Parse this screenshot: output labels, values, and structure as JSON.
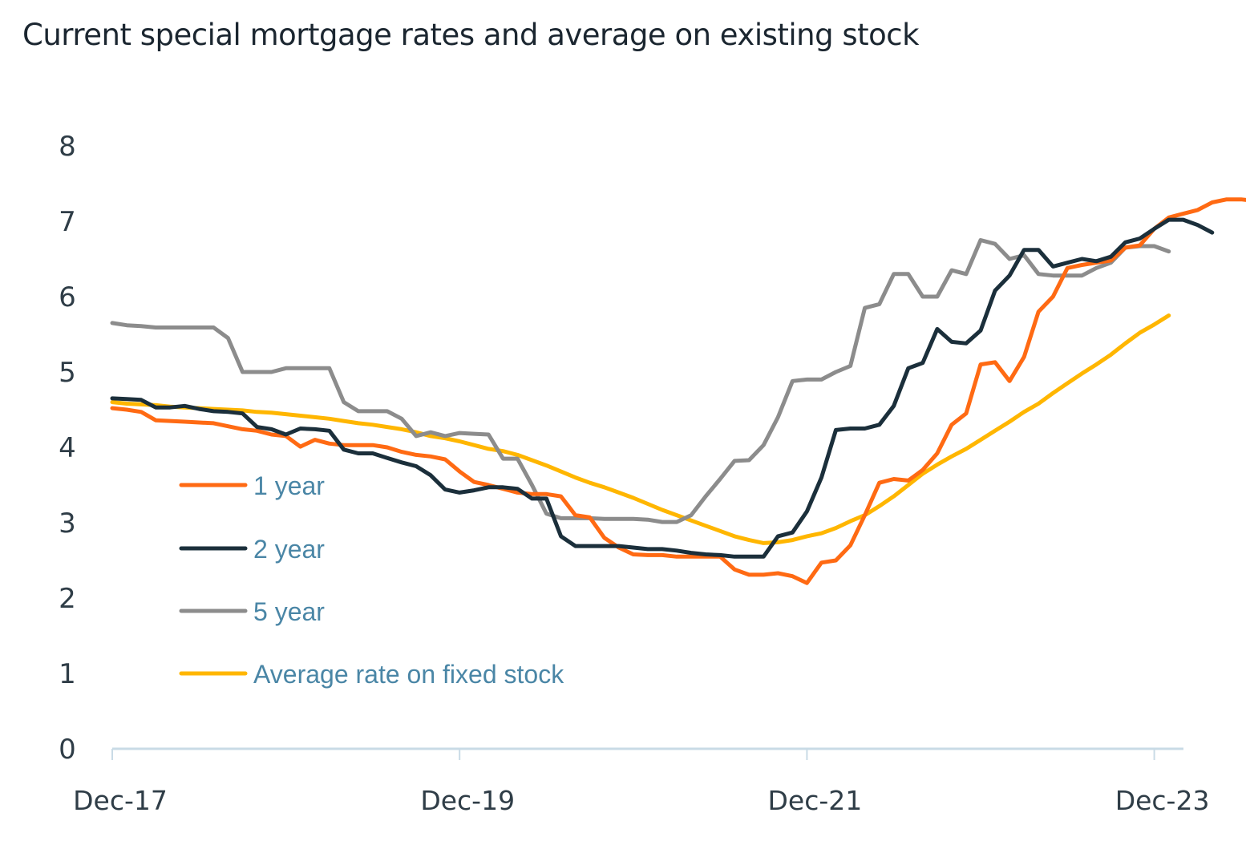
{
  "chart_data": {
    "type": "line",
    "title": "Current special mortgage rates and average on existing stock",
    "xlabel": "",
    "ylabel": "",
    "ylim": [
      0,
      8
    ],
    "yticks": [
      "0",
      "1",
      "2",
      "3",
      "4",
      "5",
      "6",
      "7",
      "8"
    ],
    "x_start": "Dec-17",
    "x_frequency": "monthly",
    "xticks": [
      {
        "label": "Dec-17",
        "month_index": 0
      },
      {
        "label": "Dec-19",
        "month_index": 24
      },
      {
        "label": "Dec-21",
        "month_index": 48
      },
      {
        "label": "Dec-23",
        "month_index": 72
      }
    ],
    "x_range_months": [
      0,
      74
    ],
    "grid": false,
    "legend_position": "center-left",
    "series": [
      {
        "name": "1 year",
        "color": "#ff6a13",
        "values": [
          4.52,
          4.5,
          4.47,
          4.36,
          4.35,
          4.34,
          4.33,
          4.32,
          4.28,
          4.24,
          4.22,
          4.17,
          4.15,
          4.01,
          4.1,
          4.05,
          4.03,
          4.03,
          4.03,
          4.0,
          3.94,
          3.9,
          3.88,
          3.84,
          3.68,
          3.54,
          3.5,
          3.45,
          3.4,
          3.38,
          3.38,
          3.35,
          3.1,
          3.07,
          2.8,
          2.67,
          2.58,
          2.57,
          2.57,
          2.55,
          2.55,
          2.55,
          2.55,
          2.38,
          2.31,
          2.31,
          2.33,
          2.29,
          2.2,
          2.47,
          2.5,
          2.7,
          3.1,
          3.53,
          3.58,
          3.56,
          3.7,
          3.92,
          4.3,
          4.45,
          5.1,
          5.13,
          4.88,
          5.2,
          5.8,
          6.0,
          6.38,
          6.42,
          6.45,
          6.48,
          6.65,
          6.68,
          6.9,
          7.05,
          7.1,
          7.15,
          7.25,
          7.29,
          7.29,
          7.27
        ]
      },
      {
        "name": "2 year",
        "color": "#1b2f3b",
        "values": [
          4.65,
          4.64,
          4.63,
          4.53,
          4.53,
          4.55,
          4.51,
          4.48,
          4.47,
          4.45,
          4.27,
          4.24,
          4.17,
          4.25,
          4.24,
          4.22,
          3.97,
          3.92,
          3.92,
          3.86,
          3.8,
          3.75,
          3.63,
          3.44,
          3.4,
          3.43,
          3.47,
          3.47,
          3.45,
          3.32,
          3.32,
          2.82,
          2.69,
          2.69,
          2.69,
          2.69,
          2.67,
          2.65,
          2.65,
          2.63,
          2.6,
          2.58,
          2.57,
          2.55,
          2.55,
          2.55,
          2.82,
          2.87,
          3.15,
          3.6,
          4.23,
          4.25,
          4.25,
          4.3,
          4.55,
          5.05,
          5.12,
          5.57,
          5.4,
          5.38,
          5.55,
          6.08,
          6.28,
          6.62,
          6.62,
          6.4,
          6.45,
          6.5,
          6.47,
          6.53,
          6.72,
          6.77,
          6.9,
          7.02,
          7.02,
          6.95,
          6.85
        ]
      },
      {
        "name": "5 year",
        "color": "#8c8c8c",
        "values": [
          5.65,
          5.62,
          5.61,
          5.59,
          5.59,
          5.59,
          5.59,
          5.59,
          5.45,
          5.0,
          5.0,
          5.0,
          5.05,
          5.05,
          5.05,
          5.05,
          4.6,
          4.48,
          4.48,
          4.48,
          4.38,
          4.15,
          4.2,
          4.15,
          4.19,
          4.18,
          4.17,
          3.85,
          3.85,
          3.5,
          3.12,
          3.06,
          3.06,
          3.06,
          3.05,
          3.05,
          3.05,
          3.04,
          3.01,
          3.01,
          3.1,
          3.35,
          3.58,
          3.82,
          3.83,
          4.03,
          4.4,
          4.88,
          4.9,
          4.9,
          5.0,
          5.08,
          5.85,
          5.9,
          6.3,
          6.3,
          6.0,
          6.0,
          6.35,
          6.3,
          6.75,
          6.7,
          6.5,
          6.55,
          6.3,
          6.28,
          6.28,
          6.28,
          6.38,
          6.45,
          6.65,
          6.67,
          6.67,
          6.6
        ]
      },
      {
        "name": "Average rate on fixed stock",
        "color": "#ffb600",
        "values": [
          4.6,
          4.58,
          4.57,
          4.56,
          4.54,
          4.53,
          4.52,
          4.51,
          4.5,
          4.49,
          4.47,
          4.46,
          4.44,
          4.42,
          4.4,
          4.38,
          4.35,
          4.32,
          4.3,
          4.27,
          4.24,
          4.2,
          4.15,
          4.12,
          4.08,
          4.03,
          3.98,
          3.95,
          3.9,
          3.83,
          3.76,
          3.68,
          3.6,
          3.53,
          3.47,
          3.4,
          3.33,
          3.25,
          3.17,
          3.1,
          3.03,
          2.96,
          2.89,
          2.82,
          2.77,
          2.73,
          2.74,
          2.77,
          2.82,
          2.86,
          2.93,
          3.02,
          3.1,
          3.22,
          3.35,
          3.5,
          3.65,
          3.77,
          3.88,
          3.98,
          4.1,
          4.22,
          4.34,
          4.47,
          4.58,
          4.72,
          4.85,
          4.98,
          5.1,
          5.23,
          5.38,
          5.52,
          5.63,
          5.75
        ]
      }
    ]
  }
}
